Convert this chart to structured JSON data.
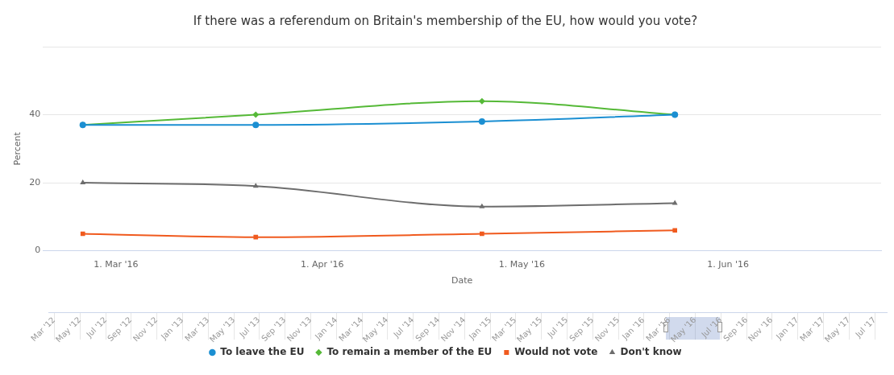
{
  "chart_data": [
    {
      "type": "line",
      "title": "If there was a referendum on Britain's membership of the EU, how would you vote?",
      "xlabel": "Date",
      "ylabel": "Percent",
      "x": [
        "2016-02-25",
        "2016-03-22",
        "2016-04-25",
        "2016-05-24"
      ],
      "xlim": [
        "2016-02-19",
        "2016-06-24"
      ],
      "xticks": [
        {
          "value": "2016-03-01",
          "label": "1. Mar '16"
        },
        {
          "value": "2016-04-01",
          "label": "1. Apr '16"
        },
        {
          "value": "2016-05-01",
          "label": "1. May '16"
        },
        {
          "value": "2016-06-01",
          "label": "1. Jun '16"
        }
      ],
      "ylim": [
        0,
        60
      ],
      "yticks": [
        0,
        20,
        40,
        {
          "value": 60,
          "label": null
        }
      ],
      "grid": "y",
      "legend": "bottom",
      "line_style": "solid",
      "series": [
        {
          "name": "To leave the EU",
          "color": "#1b8fd2",
          "marker": "circle",
          "values": [
            37,
            37,
            38,
            40
          ]
        },
        {
          "name": "To remain a member of the EU",
          "color": "#55b937",
          "marker": "diamond",
          "values": [
            37,
            40,
            44,
            40
          ]
        },
        {
          "name": "Would not vote",
          "color": "#f05a1e",
          "marker": "square",
          "values": [
            5,
            4,
            5,
            6
          ]
        },
        {
          "name": "Don't know",
          "color": "#6d6d6d",
          "marker": "triangle",
          "values": [
            20,
            19,
            13,
            14
          ]
        }
      ]
    },
    {
      "type": "other",
      "annotations": [
        "Mar '12",
        "May '12",
        "Jul '12",
        "Sep '12",
        "Nov '12",
        "Jan '13",
        "Mar '13",
        "May '13",
        "Jul '13",
        "Sep '13",
        "Nov '13",
        "Jan '14",
        "Mar '14",
        "May '14",
        "Jul '14",
        "Sep '14",
        "Nov '14",
        "Jan '15",
        "Mar '15",
        "May '15",
        "Jul '15",
        "Sep '15",
        "Nov '15",
        "Jan '16",
        "Mar '16",
        "May '16",
        "Jul '16",
        "Sep '16",
        "Nov '16",
        "Jan '17",
        "Mar '17",
        "May '17",
        "Jul '17"
      ]
    }
  ]
}
